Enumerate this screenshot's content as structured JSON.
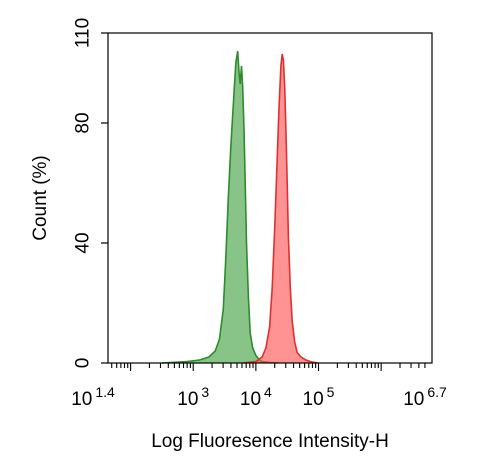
{
  "chart_data": {
    "type": "area",
    "title": "",
    "xlabel": "Log Fluoresence Intensity-H",
    "ylabel": "Count  (%)",
    "x_scale": "log10",
    "xlim": [
      1.4,
      6.7
    ],
    "ylim": [
      0,
      110
    ],
    "grid": false,
    "legend": "none",
    "x_ticks": [
      {
        "base": "10",
        "exp": "1.4",
        "value": 1.4
      },
      {
        "base": "10",
        "exp": "3",
        "value": 3
      },
      {
        "base": "10",
        "exp": "4",
        "value": 4
      },
      {
        "base": "10",
        "exp": "5",
        "value": 5
      },
      {
        "base": "10",
        "exp": "6.7",
        "value": 6.7
      }
    ],
    "y_ticks": [
      {
        "label": "0",
        "value": 0
      },
      {
        "label": "40",
        "value": 40
      },
      {
        "label": "80",
        "value": 80
      },
      {
        "label": "110",
        "value": 110
      }
    ],
    "series": [
      {
        "color": "#2e8b2e",
        "fill": "#3f9f3f",
        "x": [
          2.5,
          2.9,
          3.1,
          3.25,
          3.35,
          3.42,
          3.48,
          3.52,
          3.56,
          3.6,
          3.64,
          3.68,
          3.71,
          3.73,
          3.75,
          3.77,
          3.79,
          3.81,
          3.83,
          3.85,
          3.88,
          3.91,
          3.95,
          4.0,
          4.05,
          4.1,
          4.2,
          4.35
        ],
        "y": [
          0,
          0.5,
          1,
          2,
          4,
          8,
          18,
          35,
          55,
          72,
          86,
          100,
          104,
          97,
          93,
          99,
          92,
          78,
          60,
          40,
          22,
          10,
          5,
          2.5,
          1.2,
          0.5,
          0.2,
          0
        ]
      },
      {
        "color": "#e03030",
        "fill": "#ff5050",
        "x": [
          3.8,
          4.0,
          4.1,
          4.16,
          4.22,
          4.26,
          4.3,
          4.34,
          4.37,
          4.4,
          4.42,
          4.44,
          4.46,
          4.48,
          4.5,
          4.52,
          4.55,
          4.58,
          4.62,
          4.66,
          4.72,
          4.8,
          4.9,
          5.0
        ],
        "y": [
          0,
          0.5,
          2,
          5,
          12,
          25,
          45,
          68,
          85,
          99,
          103,
          101,
          92,
          78,
          60,
          42,
          25,
          14,
          7,
          3.5,
          2,
          1,
          0.3,
          0
        ]
      }
    ]
  }
}
